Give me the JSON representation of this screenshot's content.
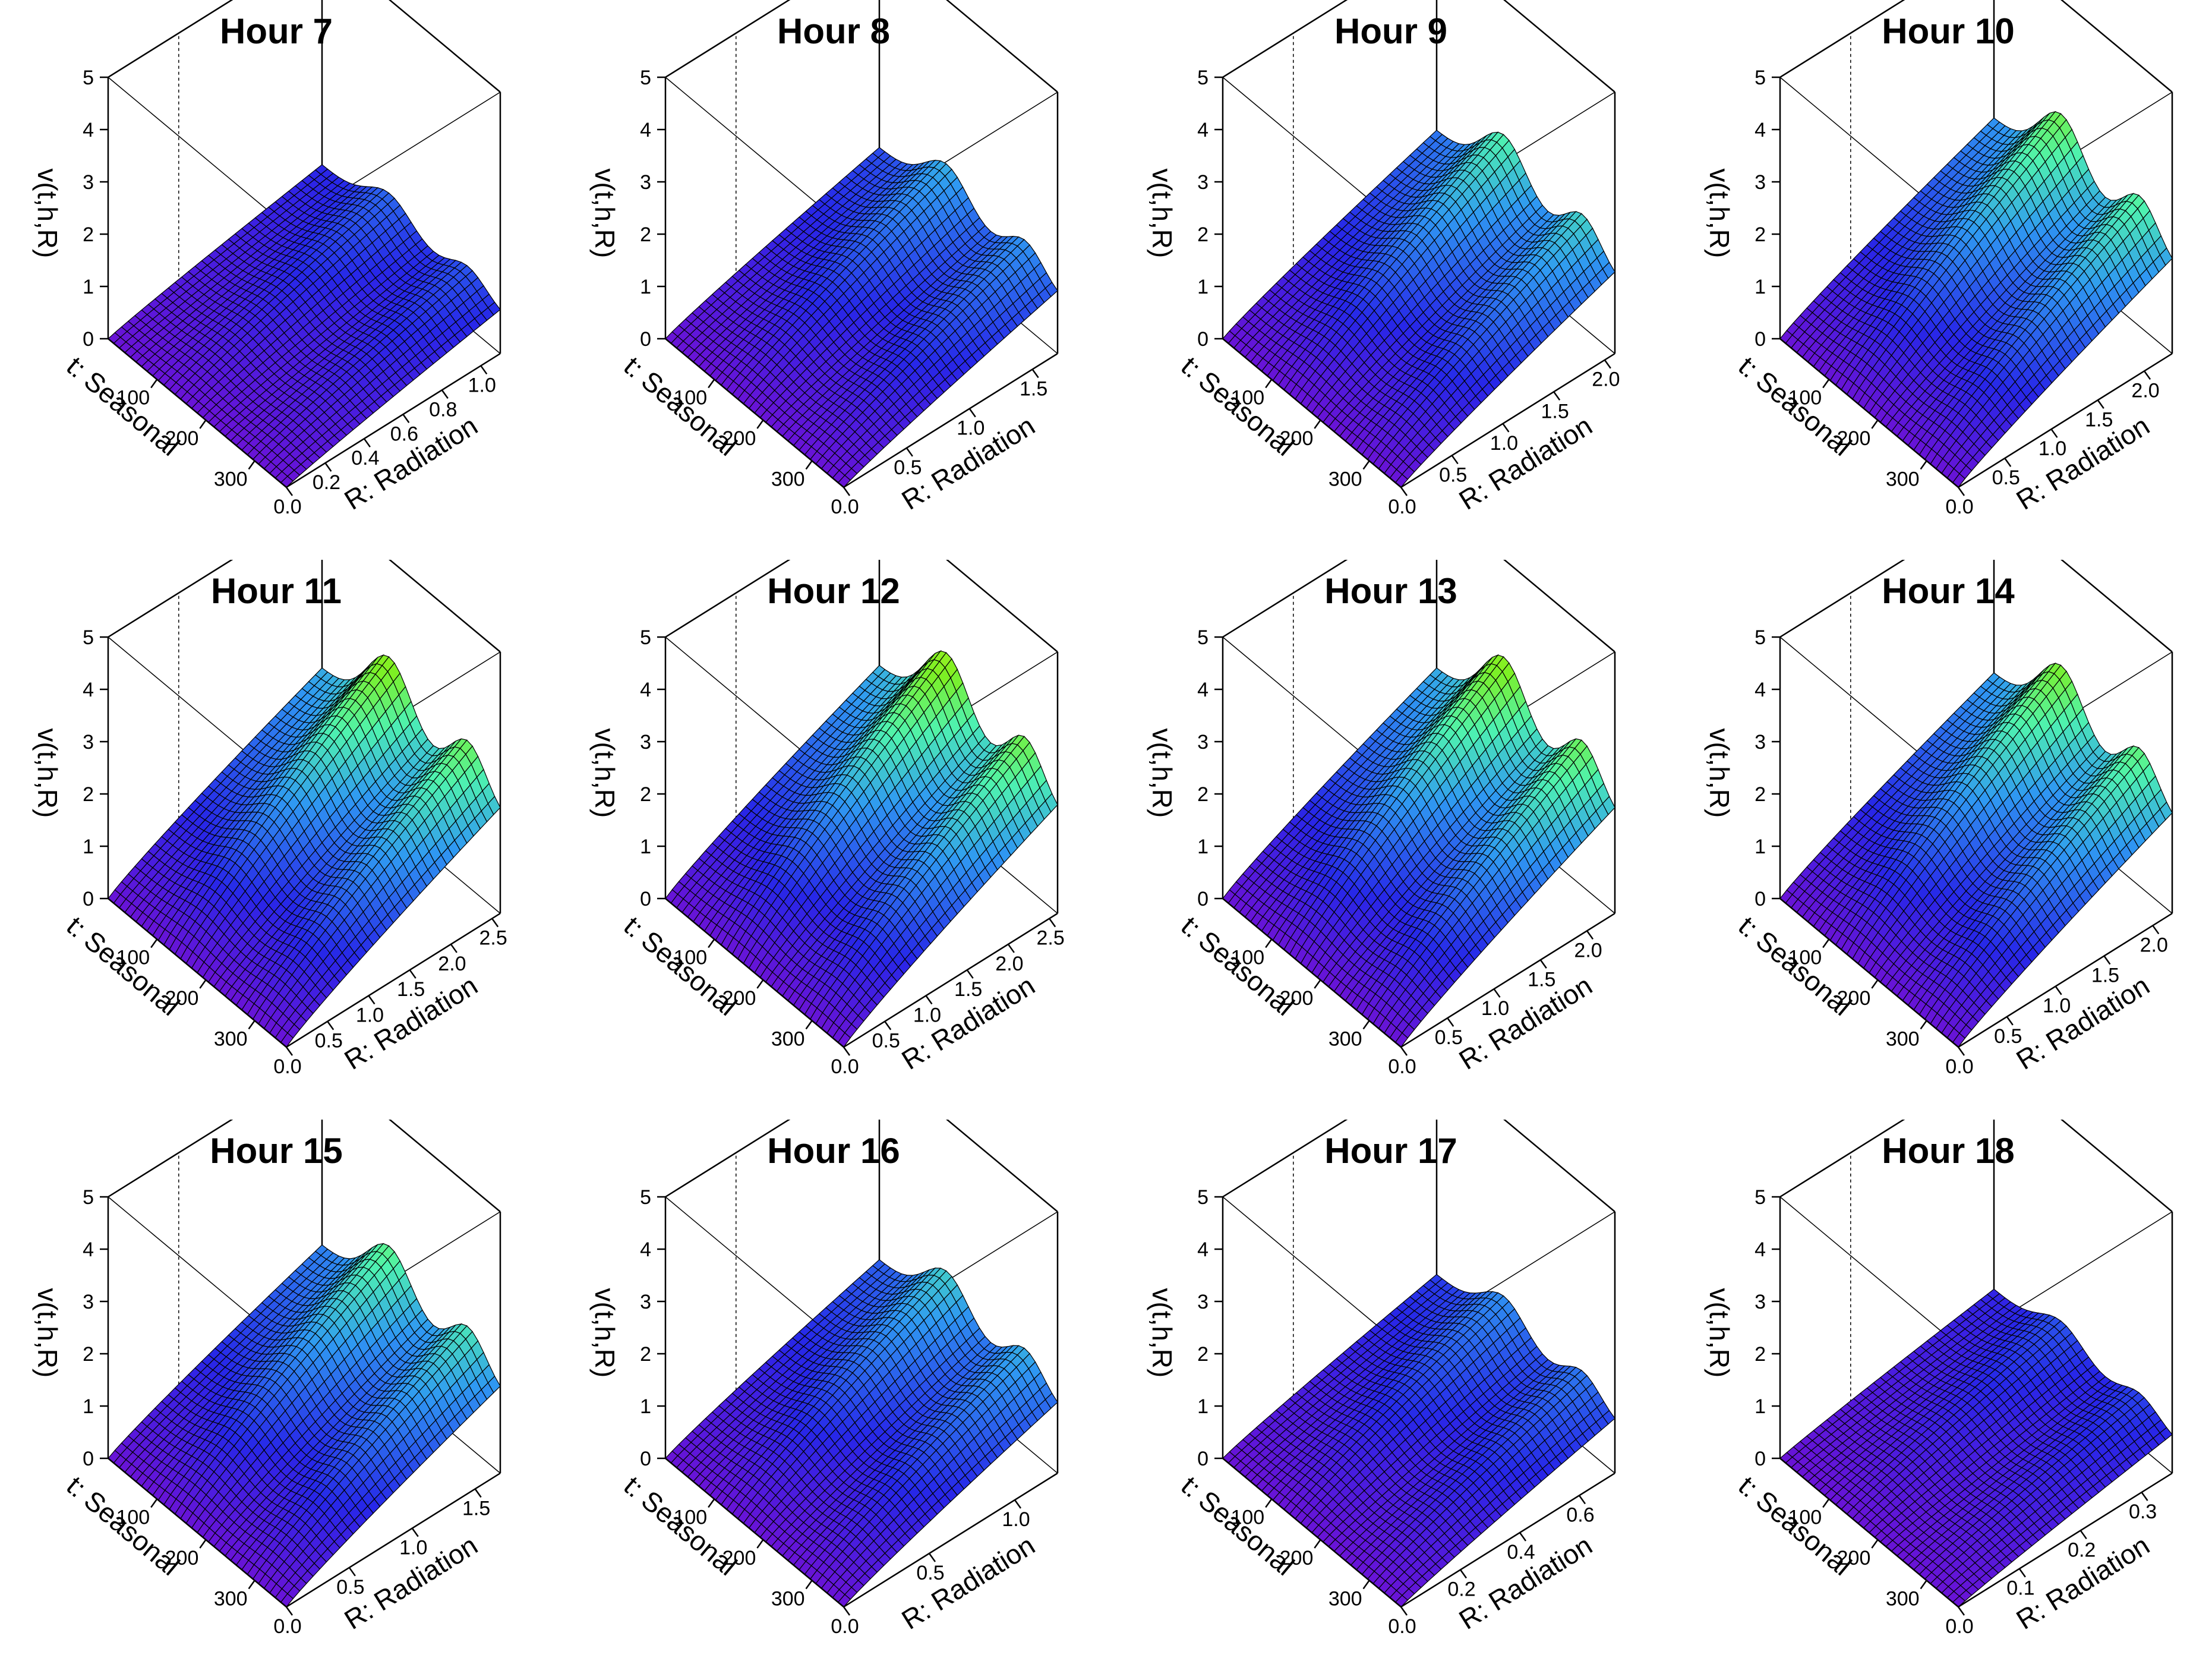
{
  "figure": {
    "z_axis_label": "v(t,h,R)",
    "x_axis_label": "t: Seasonal",
    "y_axis_label": "R: Radiation",
    "z_ticks": [
      "0",
      "1",
      "2",
      "3",
      "4",
      "5"
    ],
    "t_ticks": [
      "100",
      "200",
      "300"
    ],
    "colors": {
      "low": "#6a13d6",
      "mid_low": "#2727e8",
      "mid": "#2f98f2",
      "mid_high": "#4ef2b0",
      "high": "#7cf024",
      "top": "#ecf21c",
      "mesh": "#000000"
    }
  },
  "chart_data": [
    {
      "type": "surface3d",
      "title": "Hour 7",
      "xlabel": "t: Seasonal",
      "ylabel": "R: Radiation",
      "zlabel": "v(t,h,R)",
      "xlim": [
        0,
        365
      ],
      "ylim": [
        0,
        1.1
      ],
      "zlim": [
        0,
        5
      ],
      "peak_value": 1.6,
      "r_ticks": [
        "0.0",
        "0.2",
        "0.4",
        "0.6",
        "0.8",
        "1.0"
      ]
    },
    {
      "type": "surface3d",
      "title": "Hour 8",
      "xlabel": "t: Seasonal",
      "ylabel": "R: Radiation",
      "zlabel": "v(t,h,R)",
      "xlim": [
        0,
        365
      ],
      "ylim": [
        0,
        1.7
      ],
      "zlim": [
        0,
        5
      ],
      "peak_value": 2.3,
      "r_ticks": [
        "0.0",
        "0.5",
        "1.0",
        "1.5"
      ]
    },
    {
      "type": "surface3d",
      "title": "Hour 9",
      "xlabel": "t: Seasonal",
      "ylabel": "R: Radiation",
      "zlabel": "v(t,h,R)",
      "xlim": [
        0,
        365
      ],
      "ylim": [
        0,
        2.1
      ],
      "zlim": [
        0,
        5
      ],
      "peak_value": 3.0,
      "r_ticks": [
        "0.0",
        "0.5",
        "1.0",
        "1.5",
        "2.0"
      ]
    },
    {
      "type": "surface3d",
      "title": "Hour 10",
      "xlabel": "t: Seasonal",
      "ylabel": "R: Radiation",
      "zlabel": "v(t,h,R)",
      "xlim": [
        0,
        365
      ],
      "ylim": [
        0,
        2.3
      ],
      "zlim": [
        0,
        5
      ],
      "peak_value": 3.5,
      "r_ticks": [
        "0.0",
        "0.5",
        "1.0",
        "1.5",
        "2.0"
      ]
    },
    {
      "type": "surface3d",
      "title": "Hour 11",
      "xlabel": "t: Seasonal",
      "ylabel": "R: Radiation",
      "zlabel": "v(t,h,R)",
      "xlim": [
        0,
        365
      ],
      "ylim": [
        0,
        2.6
      ],
      "zlim": [
        0,
        5
      ],
      "peak_value": 3.9,
      "r_ticks": [
        "0.0",
        "0.5",
        "1.0",
        "1.5",
        "2.0",
        "2.5"
      ]
    },
    {
      "type": "surface3d",
      "title": "Hour 12",
      "xlabel": "t: Seasonal",
      "ylabel": "R: Radiation",
      "zlabel": "v(t,h,R)",
      "xlim": [
        0,
        365
      ],
      "ylim": [
        0,
        2.6
      ],
      "zlim": [
        0,
        5
      ],
      "peak_value": 4.0,
      "r_ticks": [
        "0.0",
        "0.5",
        "1.0",
        "1.5",
        "2.0",
        "2.5"
      ]
    },
    {
      "type": "surface3d",
      "title": "Hour 13",
      "xlabel": "t: Seasonal",
      "ylabel": "R: Radiation",
      "zlabel": "v(t,h,R)",
      "xlim": [
        0,
        365
      ],
      "ylim": [
        0,
        2.3
      ],
      "zlim": [
        0,
        5
      ],
      "peak_value": 3.9,
      "r_ticks": [
        "0.0",
        "0.5",
        "1.0",
        "1.5",
        "2.0"
      ]
    },
    {
      "type": "surface3d",
      "title": "Hour 14",
      "xlabel": "t: Seasonal",
      "ylabel": "R: Radiation",
      "zlabel": "v(t,h,R)",
      "xlim": [
        0,
        365
      ],
      "ylim": [
        0,
        2.2
      ],
      "zlim": [
        0,
        5
      ],
      "peak_value": 3.7,
      "r_ticks": [
        "0.0",
        "0.5",
        "1.0",
        "1.5",
        "2.0"
      ]
    },
    {
      "type": "surface3d",
      "title": "Hour 15",
      "xlabel": "t: Seasonal",
      "ylabel": "R: Radiation",
      "zlabel": "v(t,h,R)",
      "xlim": [
        0,
        365
      ],
      "ylim": [
        0,
        1.7
      ],
      "zlim": [
        0,
        5
      ],
      "peak_value": 3.2,
      "r_ticks": [
        "0.0",
        "0.5",
        "1.0",
        "1.5"
      ]
    },
    {
      "type": "surface3d",
      "title": "Hour 16",
      "xlabel": "t: Seasonal",
      "ylabel": "R: Radiation",
      "zlabel": "v(t,h,R)",
      "xlim": [
        0,
        365
      ],
      "ylim": [
        0,
        1.25
      ],
      "zlim": [
        0,
        5
      ],
      "peak_value": 2.6,
      "r_ticks": [
        "0.0",
        "0.5",
        "1.0"
      ]
    },
    {
      "type": "surface3d",
      "title": "Hour 17",
      "xlabel": "t: Seasonal",
      "ylabel": "R: Radiation",
      "zlabel": "v(t,h,R)",
      "xlim": [
        0,
        365
      ],
      "ylim": [
        0,
        0.72
      ],
      "zlim": [
        0,
        5
      ],
      "peak_value": 2.0,
      "r_ticks": [
        "0.0",
        "0.2",
        "0.4",
        "0.6"
      ]
    },
    {
      "type": "surface3d",
      "title": "Hour 18",
      "xlabel": "t: Seasonal",
      "ylabel": "R: Radiation",
      "zlabel": "v(t,h,R)",
      "xlim": [
        0,
        365
      ],
      "ylim": [
        0,
        0.35
      ],
      "zlim": [
        0,
        5
      ],
      "peak_value": 1.4,
      "r_ticks": [
        "0.0",
        "0.1",
        "0.2",
        "0.3"
      ]
    }
  ]
}
